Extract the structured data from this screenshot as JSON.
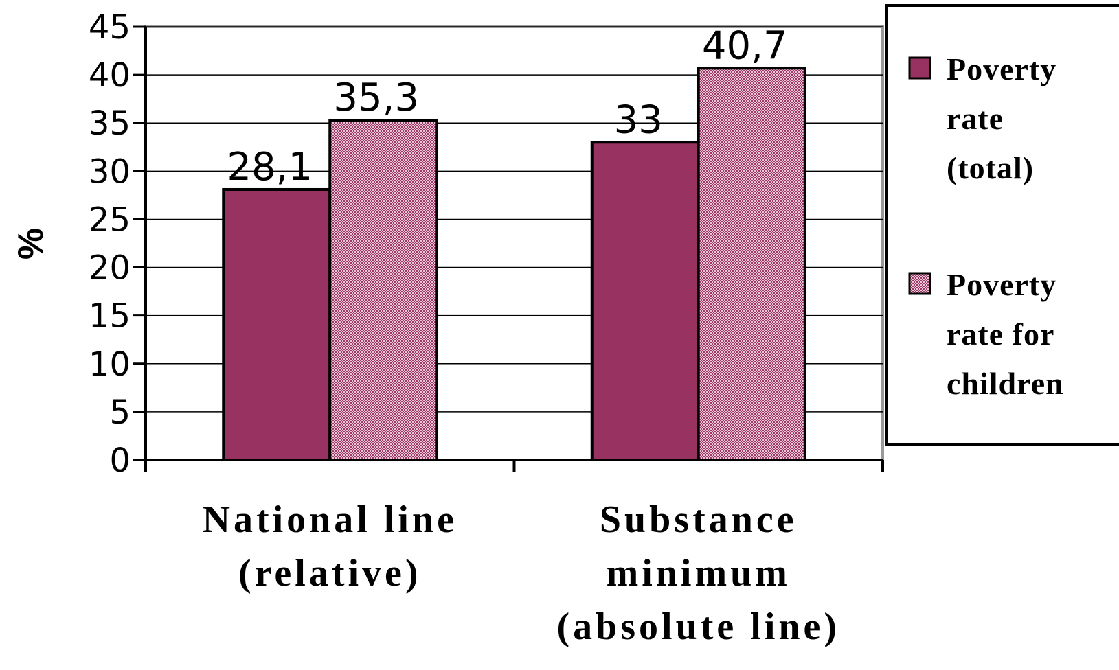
{
  "chart_data": {
    "type": "bar",
    "categories": [
      [
        "National line",
        "(relative)"
      ],
      [
        "Substance",
        "minimum",
        "(absolute line)"
      ]
    ],
    "series": [
      {
        "name": [
          "Poverty",
          "rate",
          "(total)"
        ],
        "values": [
          28.1,
          33
        ],
        "labels": [
          "28,1",
          "33"
        ],
        "color": "#983361",
        "pattern": "solid"
      },
      {
        "name": [
          "Poverty",
          "rate for",
          "children"
        ],
        "values": [
          35.3,
          40.7
        ],
        "labels": [
          "35,3",
          "40,7"
        ],
        "color": "#c77a9b",
        "pattern": "dotted"
      }
    ],
    "title": "",
    "xlabel": "",
    "ylabel": "%",
    "ylim": [
      0,
      45
    ],
    "yticks": [
      0,
      5,
      10,
      15,
      20,
      25,
      30,
      35,
      40,
      45
    ],
    "grid": true,
    "legend_position": "right"
  }
}
